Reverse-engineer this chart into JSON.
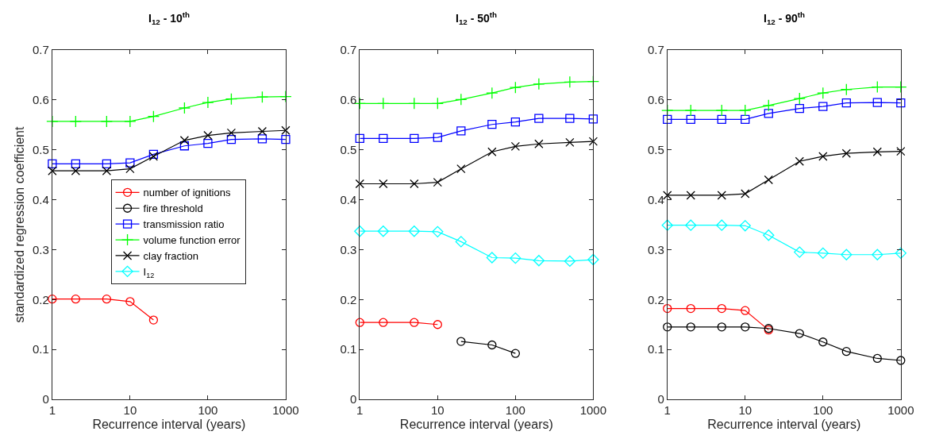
{
  "chart_data": [
    {
      "type": "line",
      "title": "I$_{12}$ - 10$^{th}$",
      "xlabel": "Recurrence interval (years)",
      "ylabel": "standardized regression coefficient",
      "log": "x",
      "xlim": [
        1,
        1000
      ],
      "xticks": [
        1,
        10,
        100,
        1000
      ],
      "ylim": [
        0,
        0.7
      ],
      "yticks": [
        0,
        0.1,
        0.2,
        0.3,
        0.4,
        0.5,
        0.6,
        0.7
      ],
      "legend": "center",
      "x": [
        1,
        2,
        5,
        10,
        20,
        50,
        100,
        200,
        500,
        1000
      ],
      "series": [
        {
          "name": "number of ignitions",
          "color": "#ff0000",
          "marker": "circle",
          "values": [
            0.201,
            0.201,
            0.201,
            0.196,
            0.159,
            null,
            null,
            null,
            null,
            null
          ]
        },
        {
          "name": "fire threshold",
          "color": "#000000",
          "marker": "circle",
          "values": [
            null,
            null,
            null,
            null,
            null,
            null,
            null,
            null,
            null,
            null
          ]
        },
        {
          "name": "transmission ratio",
          "color": "#0000ff",
          "marker": "square",
          "values": [
            0.472,
            0.472,
            0.472,
            0.474,
            0.491,
            0.508,
            0.513,
            0.521,
            0.522,
            0.521
          ]
        },
        {
          "name": "volume function error",
          "color": "#00ff00",
          "marker": "cross",
          "values": [
            0.557,
            0.557,
            0.557,
            0.557,
            0.567,
            0.584,
            0.595,
            0.602,
            0.606,
            0.607
          ]
        },
        {
          "name": "clay fraction",
          "color": "#000000",
          "marker": "x",
          "values": [
            0.458,
            0.458,
            0.458,
            0.462,
            0.487,
            0.519,
            0.529,
            0.534,
            0.537,
            0.539
          ]
        },
        {
          "name": "I$_{12}$",
          "color": "#00ffff",
          "marker": "diamond",
          "values": [
            null,
            null,
            null,
            null,
            null,
            null,
            null,
            null,
            null,
            null
          ]
        }
      ]
    },
    {
      "type": "line",
      "title": "I$_{12}$ - 50$^{th}$",
      "xlabel": "Recurrence interval (years)",
      "log": "x",
      "xlim": [
        1,
        1000
      ],
      "xticks": [
        1,
        10,
        100,
        1000
      ],
      "ylim": [
        0,
        0.7
      ],
      "yticks": [
        0,
        0.1,
        0.2,
        0.3,
        0.4,
        0.5,
        0.6,
        0.7
      ],
      "x": [
        1,
        2,
        5,
        10,
        20,
        50,
        100,
        200,
        500,
        1000
      ],
      "series": [
        {
          "color": "#ff0000",
          "marker": "circle",
          "values": [
            0.154,
            0.154,
            0.154,
            0.15,
            null,
            null,
            null,
            null,
            null,
            null
          ]
        },
        {
          "color": "#000000",
          "marker": "circle",
          "values": [
            null,
            null,
            null,
            null,
            0.116,
            0.109,
            0.092,
            null,
            null,
            null
          ]
        },
        {
          "color": "#0000ff",
          "marker": "square",
          "values": [
            0.523,
            0.523,
            0.523,
            0.525,
            0.538,
            0.551,
            0.556,
            0.563,
            0.563,
            0.562
          ]
        },
        {
          "color": "#00ff00",
          "marker": "cross",
          "values": [
            0.593,
            0.593,
            0.593,
            0.593,
            0.601,
            0.614,
            0.625,
            0.632,
            0.636,
            0.637
          ]
        },
        {
          "color": "#000000",
          "marker": "x",
          "values": [
            0.432,
            0.432,
            0.432,
            0.435,
            0.462,
            0.496,
            0.507,
            0.512,
            0.515,
            0.517
          ]
        },
        {
          "color": "#00ffff",
          "marker": "diamond",
          "values": [
            0.337,
            0.337,
            0.337,
            0.336,
            0.316,
            0.284,
            0.283,
            0.278,
            0.277,
            0.28
          ]
        }
      ]
    },
    {
      "type": "line",
      "title": "I$_{12}$ - 90$^{th}$",
      "xlabel": "Recurrence interval (years)",
      "log": "x",
      "xlim": [
        1,
        1000
      ],
      "xticks": [
        1,
        10,
        100,
        1000
      ],
      "ylim": [
        0,
        0.7
      ],
      "yticks": [
        0,
        0.1,
        0.2,
        0.3,
        0.4,
        0.5,
        0.6,
        0.7
      ],
      "x": [
        1,
        2,
        5,
        10,
        20,
        50,
        100,
        200,
        500,
        1000
      ],
      "series": [
        {
          "color": "#ff0000",
          "marker": "circle",
          "values": [
            0.182,
            0.182,
            0.182,
            0.178,
            0.139,
            null,
            null,
            null,
            null,
            null
          ]
        },
        {
          "color": "#000000",
          "marker": "circle",
          "values": [
            0.145,
            0.145,
            0.145,
            0.145,
            0.142,
            0.132,
            0.115,
            0.096,
            0.082,
            0.078
          ]
        },
        {
          "color": "#0000ff",
          "marker": "square",
          "values": [
            0.561,
            0.561,
            0.561,
            0.561,
            0.573,
            0.583,
            0.587,
            0.594,
            0.595,
            0.594
          ]
        },
        {
          "color": "#00ff00",
          "marker": "cross",
          "values": [
            0.579,
            0.579,
            0.579,
            0.579,
            0.589,
            0.603,
            0.614,
            0.621,
            0.626,
            0.626
          ]
        },
        {
          "color": "#000000",
          "marker": "x",
          "values": [
            0.409,
            0.409,
            0.409,
            0.412,
            0.44,
            0.477,
            0.487,
            0.493,
            0.496,
            0.497
          ]
        },
        {
          "color": "#00ffff",
          "marker": "diamond",
          "values": [
            0.349,
            0.349,
            0.349,
            0.348,
            0.329,
            0.295,
            0.293,
            0.29,
            0.29,
            0.293
          ]
        }
      ]
    }
  ]
}
